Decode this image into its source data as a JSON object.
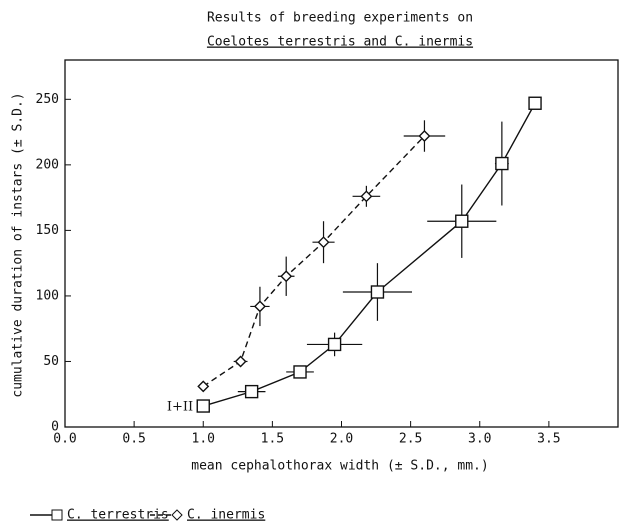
{
  "chart_data": {
    "type": "errorbar-line",
    "title": "Results of breeding experiments on",
    "subtitle": "Coelotes terrestris and C. inermis",
    "xlabel": "mean cephalothorax width (± S.D., mm.)",
    "ylabel": "cumulative duration of instars (± S.D.)",
    "annotation": "I+II",
    "xlim": [
      0,
      4
    ],
    "ylim": [
      0,
      280
    ],
    "xticks": [
      {
        "value": 0,
        "label": "0.0"
      },
      0.5,
      {
        "value": 1,
        "label": "1.0"
      },
      1.5,
      {
        "value": 2,
        "label": "2.0"
      },
      2.5,
      {
        "value": 3,
        "label": "3.0"
      },
      3.5
    ],
    "yticks": [
      0,
      50,
      100,
      150,
      200,
      250
    ],
    "series": [
      {
        "name": "C. terrestris",
        "color": "#111111",
        "marker": "square",
        "dash": false,
        "x": [
          1.0,
          1.35,
          1.7,
          1.95,
          2.26,
          2.87,
          3.16,
          3.4
        ],
        "values": [
          16,
          27,
          42,
          63,
          103,
          157,
          201,
          247
        ],
        "xerr": [
          0,
          0.1,
          0.1,
          0.2,
          0.25,
          0.25,
          0.05,
          0
        ],
        "yerr": [
          4,
          4,
          4,
          9,
          22,
          28,
          32,
          0
        ]
      },
      {
        "name": "C. inermis",
        "color": "#111111",
        "marker": "diamond",
        "dash": true,
        "x": [
          1.0,
          1.27,
          1.41,
          1.6,
          1.87,
          2.18,
          2.6
        ],
        "values": [
          31,
          50,
          92,
          115,
          141,
          176,
          222
        ],
        "xerr": [
          0,
          0.05,
          0.07,
          0.06,
          0.08,
          0.1,
          0.15
        ],
        "yerr": [
          3,
          3,
          15,
          15,
          16,
          8,
          12
        ]
      }
    ]
  }
}
